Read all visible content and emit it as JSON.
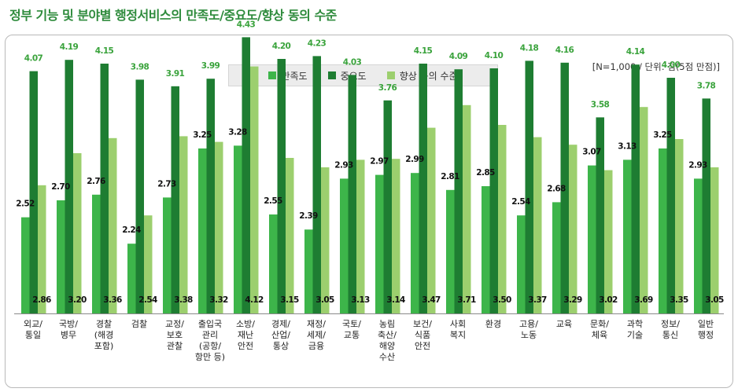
{
  "title": "정부 기능 및 분야별 행정서비스의 만족도/중요도/향상 동의 수준",
  "note": "[N=1,000 / 단위: 점(5점 만점)]",
  "colors": {
    "satisfaction": "#3db54a",
    "importance": "#1e7d32",
    "improvement": "#9ccf6e",
    "accent": "#2e8b3c"
  },
  "chart_data": {
    "type": "bar",
    "title": "정부 기능 및 분야별 행정서비스의 만족도/중요도/향상 동의 수준",
    "unit_note": "[N=1,000 / 단위: 점(5점 만점)]",
    "legend_position": "top-center",
    "categories": [
      [
        "외교/",
        "통일"
      ],
      [
        "국방/",
        "병무"
      ],
      [
        "경찰",
        "(해경",
        "포함)"
      ],
      [
        "검찰"
      ],
      [
        "교정/",
        "보호",
        "관찰"
      ],
      [
        "출입국",
        "관리",
        "(공항/",
        "항만 등)"
      ],
      [
        "소방/",
        "재난",
        "안전"
      ],
      [
        "경제/",
        "산업/",
        "통상"
      ],
      [
        "재정/",
        "세제/",
        "금융"
      ],
      [
        "국토/",
        "교통"
      ],
      [
        "농림",
        "축산/",
        "해양",
        "수산"
      ],
      [
        "보건/",
        "식품",
        "안전"
      ],
      [
        "사회",
        "복지"
      ],
      [
        "환경"
      ],
      [
        "고용/",
        "노동"
      ],
      [
        "교육"
      ],
      [
        "문화/",
        "체육"
      ],
      [
        "과학",
        "기술"
      ],
      [
        "정보/",
        "통신"
      ],
      [
        "일반",
        "행정"
      ]
    ],
    "series": [
      {
        "name": "만족도",
        "color": "#3db54a",
        "values": [
          2.52,
          2.7,
          2.76,
          2.24,
          2.73,
          3.25,
          3.28,
          2.55,
          2.39,
          2.93,
          2.97,
          2.99,
          2.81,
          2.85,
          2.54,
          2.68,
          3.07,
          3.13,
          3.25,
          2.93
        ]
      },
      {
        "name": "중요도",
        "color": "#1e7d32",
        "values": [
          4.07,
          4.19,
          4.15,
          3.98,
          3.91,
          3.99,
          4.43,
          4.2,
          4.23,
          4.03,
          3.76,
          4.15,
          4.09,
          4.1,
          4.18,
          4.16,
          3.58,
          4.14,
          4.0,
          3.78
        ]
      },
      {
        "name": "향상 동의 수준",
        "color": "#9ccf6e",
        "values": [
          2.86,
          3.2,
          3.36,
          2.54,
          3.38,
          3.32,
          4.12,
          3.15,
          3.05,
          3.13,
          3.14,
          3.47,
          3.71,
          3.5,
          3.37,
          3.29,
          3.02,
          3.69,
          3.35,
          3.05
        ]
      }
    ],
    "ylim": [
      1.5,
      4.5
    ],
    "grid": false
  }
}
